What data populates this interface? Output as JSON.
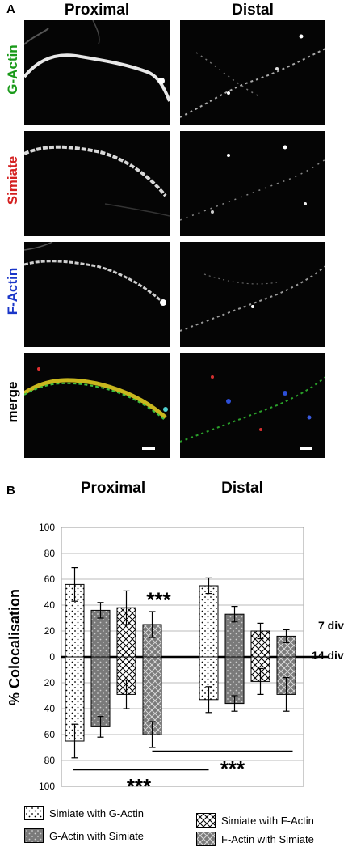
{
  "panel_a": {
    "letter": "A",
    "col_proximal": "Proximal",
    "col_distal": "Distal",
    "rows": [
      {
        "label": "G-Actin",
        "color": "#1a9a1a"
      },
      {
        "label": "Simiate",
        "color": "#d42020"
      },
      {
        "label": "F-Actin",
        "color": "#1a36c8"
      },
      {
        "label": "merge",
        "color": "#000000"
      }
    ]
  },
  "panel_b": {
    "letter": "B",
    "col_proximal": "Proximal",
    "col_distal": "Distal",
    "ylabel": "% Colocalisation",
    "label_top": "7 div",
    "label_bottom": "14 div",
    "sig_label": "***"
  },
  "chart_data": {
    "type": "bar",
    "title": "",
    "ylabel": "% Colocalisation",
    "y_ticks": [
      "100",
      "80",
      "60",
      "40",
      "20",
      "0",
      "20",
      "40",
      "60",
      "80",
      "100"
    ],
    "ylim": [
      -100,
      100
    ],
    "groups": [
      "Proximal",
      "Distal"
    ],
    "series": [
      {
        "name": "Simiate with G-Actin",
        "pattern": "dots",
        "div7": [
          56,
          55
        ],
        "div7_err": [
          13,
          6
        ],
        "div14": [
          65,
          33
        ],
        "div14_err": [
          13,
          10
        ]
      },
      {
        "name": "G-Actin with Simiate",
        "pattern": "dark-dots",
        "div7": [
          36,
          33
        ],
        "div7_err": [
          6,
          6
        ],
        "div14": [
          54,
          36
        ],
        "div14_err": [
          8,
          6
        ]
      },
      {
        "name": "Simiate with F-Actin",
        "pattern": "crosshatch",
        "div7": [
          38,
          20
        ],
        "div7_err": [
          13,
          6
        ],
        "div14": [
          29,
          19
        ],
        "div14_err": [
          11,
          10
        ]
      },
      {
        "name": "F-Actin with Simiate",
        "pattern": "dark-crosshatch",
        "div7": [
          25,
          16
        ],
        "div7_err": [
          10,
          5
        ],
        "div14": [
          60,
          29
        ],
        "div14_err": [
          10,
          13
        ]
      }
    ],
    "significance": [
      {
        "label": "***",
        "position": "above F-Actin with Simiate (Proximal, 7 div)"
      },
      {
        "label": "***",
        "position": "bracket F-Actin with Simiate Proximal vs Distal (14 div)"
      },
      {
        "label": "***",
        "position": "bracket Simiate with G-Actin Proximal vs Distal (14 div)"
      }
    ],
    "grid": true,
    "legend_placement": "bottom"
  },
  "colors": {
    "bar_light": "#ffffff",
    "bar_dark": "#7a7a7a",
    "grid": "#bbbbbb",
    "axis": "#000000"
  }
}
